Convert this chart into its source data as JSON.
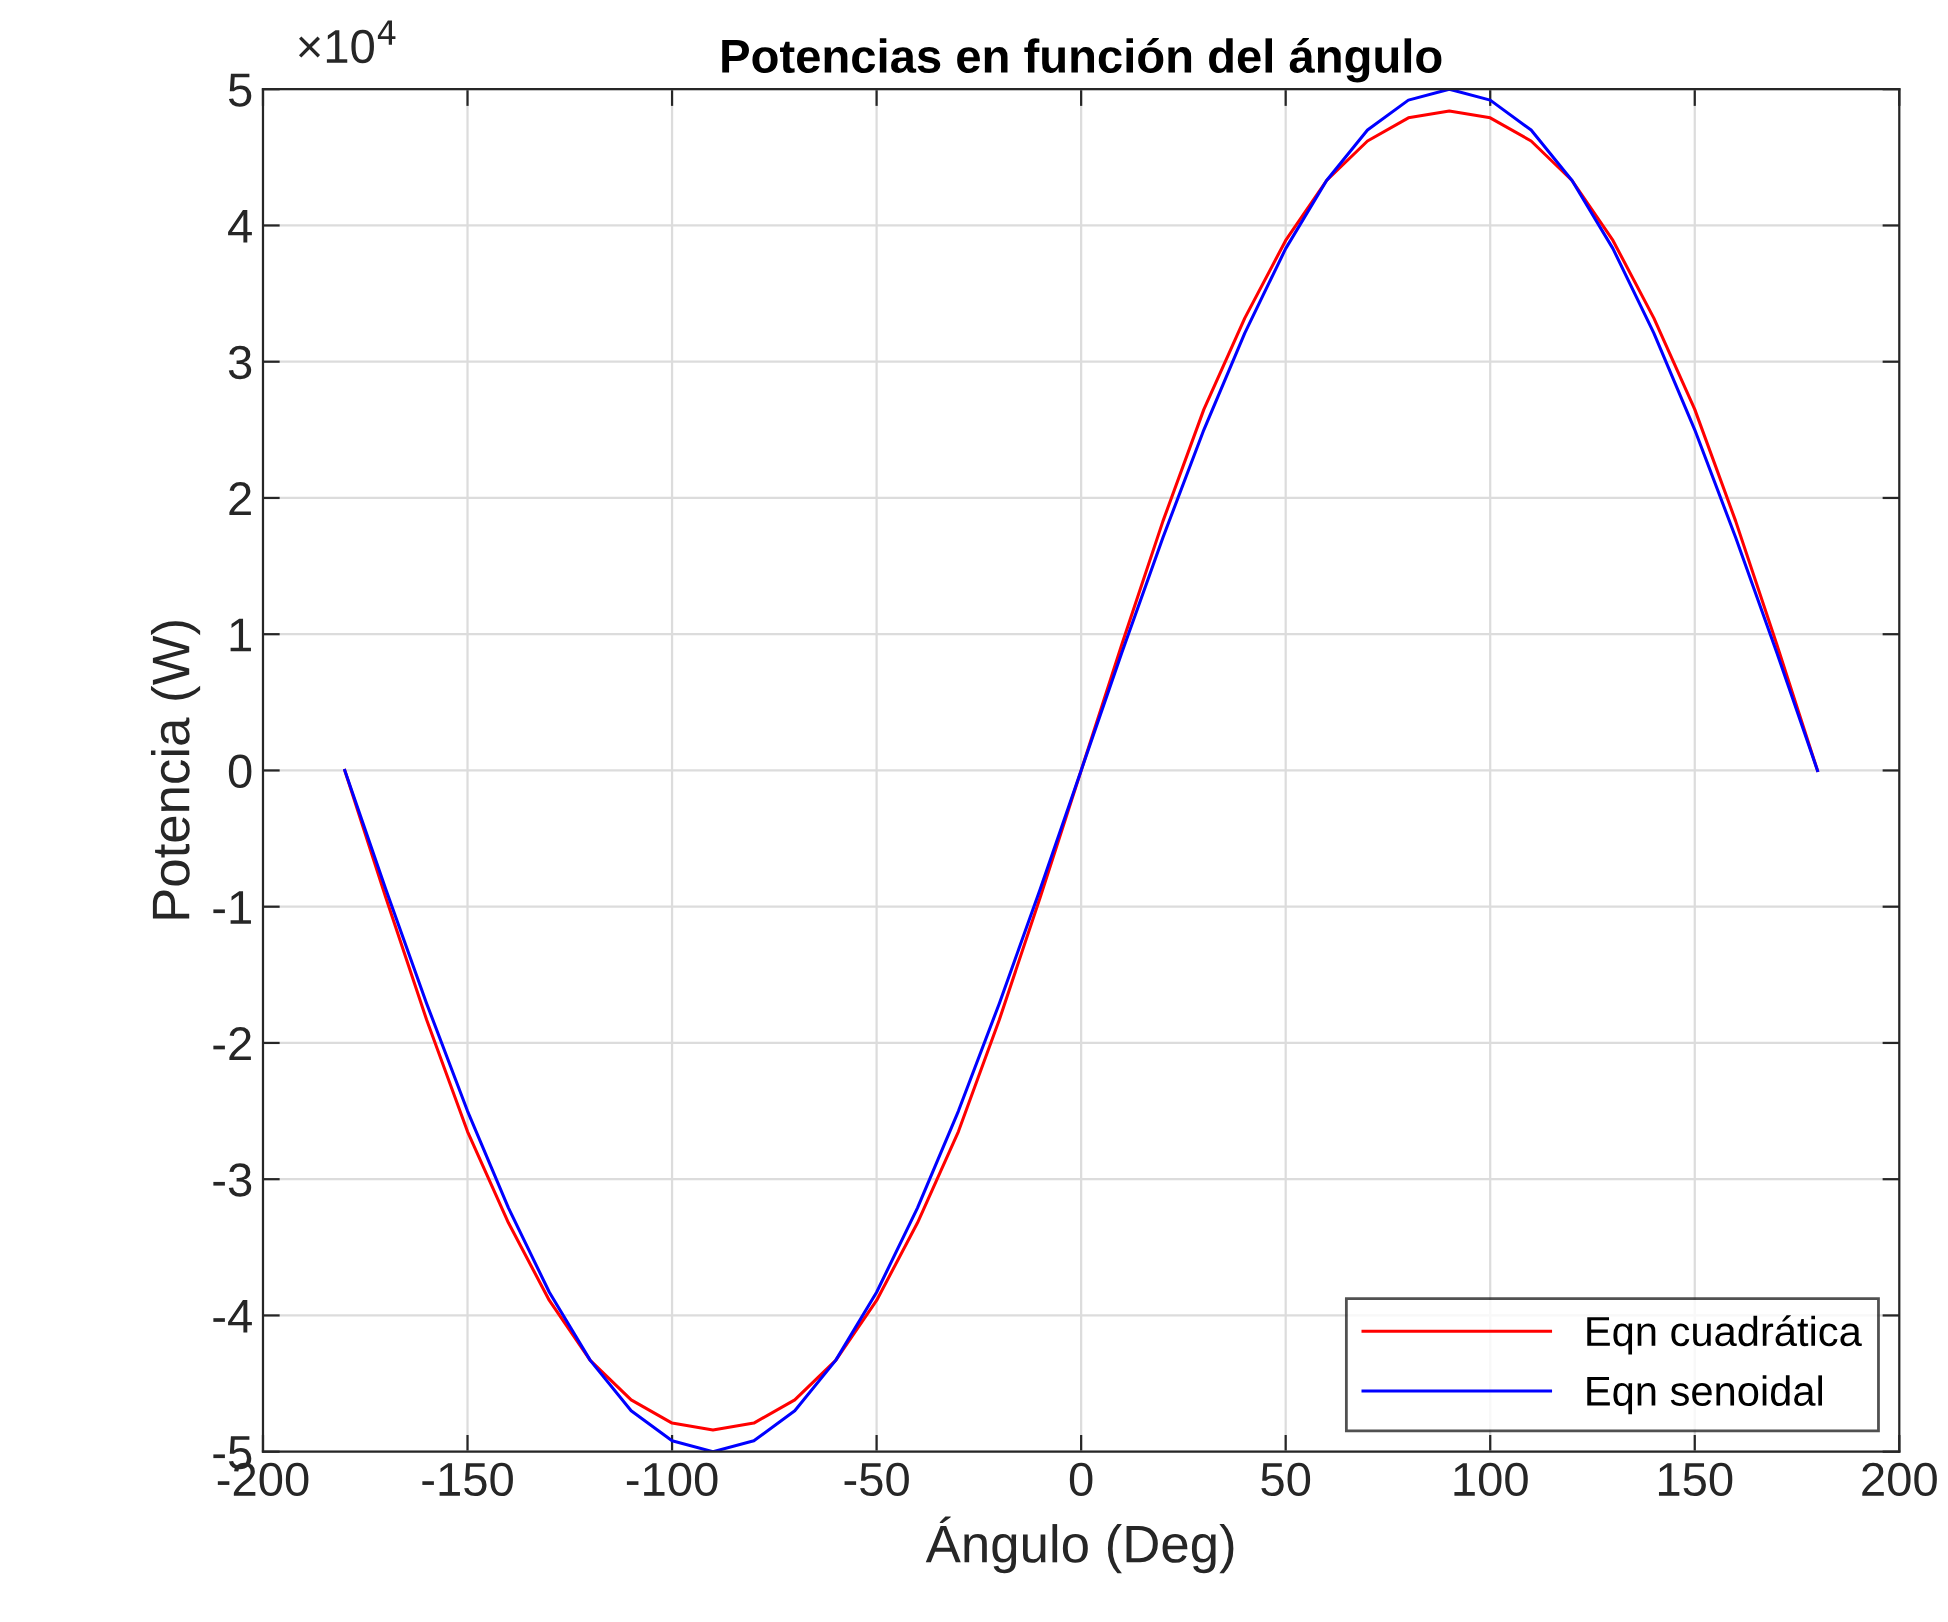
{
  "chart_data": {
    "type": "line",
    "title": "Potencias en función del ángulo",
    "xlabel": "Ángulo (Deg)",
    "ylabel": "Potencia (W)",
    "x": [
      -180,
      -170,
      -160,
      -150,
      -140,
      -130,
      -120,
      -110,
      -100,
      -90,
      -80,
      -70,
      -60,
      -50,
      -40,
      -30,
      -20,
      -10,
      0,
      10,
      20,
      30,
      40,
      50,
      60,
      70,
      80,
      90,
      100,
      110,
      120,
      130,
      140,
      150,
      160,
      170,
      180
    ],
    "series": [
      {
        "name": "Eqn cuadrática",
        "color": "#ff0000",
        "values": [
          0,
          -0.93,
          -1.83,
          -2.65,
          -3.32,
          -3.89,
          -4.33,
          -4.62,
          -4.79,
          -4.84,
          -4.79,
          -4.62,
          -4.33,
          -3.89,
          -3.32,
          -2.65,
          -1.83,
          -0.93,
          0,
          0.93,
          1.83,
          2.65,
          3.32,
          3.89,
          4.33,
          4.62,
          4.79,
          4.84,
          4.79,
          4.62,
          4.33,
          3.89,
          3.32,
          2.65,
          1.83,
          0.93,
          0
        ]
      },
      {
        "name": "Eqn senoidal",
        "color": "#0000ff",
        "values": [
          0,
          -0.87,
          -1.71,
          -2.5,
          -3.21,
          -3.83,
          -4.33,
          -4.7,
          -4.92,
          -5,
          -4.92,
          -4.7,
          -4.33,
          -3.83,
          -3.21,
          -2.5,
          -1.71,
          -0.87,
          0,
          0.87,
          1.71,
          2.5,
          3.21,
          3.83,
          4.33,
          4.7,
          4.92,
          5,
          4.92,
          4.7,
          4.33,
          3.83,
          3.21,
          2.5,
          1.71,
          0.87,
          0
        ]
      }
    ],
    "xlim": [
      -200,
      200
    ],
    "xticks": [
      -200,
      -150,
      -100,
      -50,
      0,
      50,
      100,
      150,
      200
    ],
    "ylim": [
      -5,
      5
    ],
    "yticks": [
      -5,
      -4,
      -3,
      -2,
      -1,
      0,
      1,
      2,
      3,
      4,
      5
    ],
    "annotations": [
      "×10$^{4}$"
    ],
    "grid": true,
    "legend": "bottom right",
    "line_style": "solid",
    "marker": "none"
  }
}
